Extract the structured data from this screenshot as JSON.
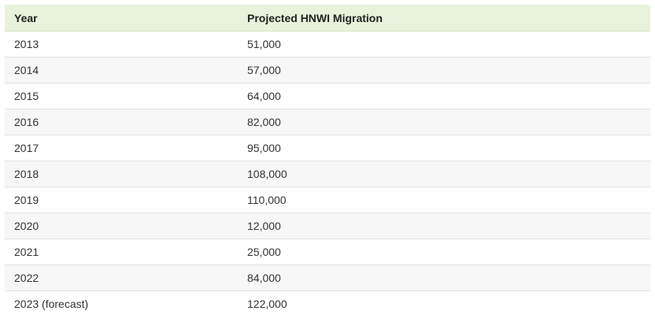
{
  "table": {
    "headers": [
      "Year",
      "Projected HNWI Migration"
    ],
    "rows": [
      [
        "2013",
        "51,000"
      ],
      [
        "2014",
        "57,000"
      ],
      [
        "2015",
        "64,000"
      ],
      [
        "2016",
        "82,000"
      ],
      [
        "2017",
        "95,000"
      ],
      [
        "2018",
        "108,000"
      ],
      [
        "2019",
        "110,000"
      ],
      [
        "2020",
        "12,000"
      ],
      [
        "2021",
        "25,000"
      ],
      [
        "2022",
        "84,000"
      ],
      [
        "2023 (forecast)",
        "122,000"
      ]
    ]
  },
  "colors": {
    "header_bg": "#e8f2dc",
    "stripe_bg": "#f7f7f7",
    "row_border": "#e2e2e2"
  }
}
